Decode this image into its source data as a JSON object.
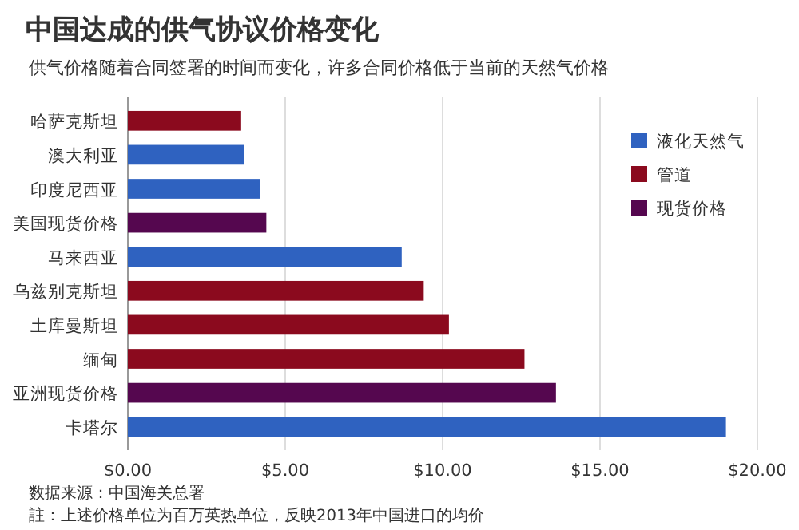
{
  "chart_data": {
    "type": "bar",
    "orientation": "horizontal",
    "stacked": true,
    "title": "中国达成的供气协议价格变化",
    "subtitle": "供气价格随着合同签署的时间而变化，许多合同价格低于当前的天然气价格",
    "categories": [
      "哈萨克斯坦",
      "澳大利亚",
      "印度尼西亚",
      "美国现货价格",
      "马来西亚",
      "乌兹别克斯坦",
      "土库曼斯坦",
      "缅甸",
      "亚洲现货价格",
      "卡塔尔"
    ],
    "series": [
      {
        "name": "液化天然气",
        "color": "#2f62c0",
        "values": [
          null,
          3.7,
          4.2,
          null,
          8.7,
          null,
          null,
          null,
          null,
          19.0
        ]
      },
      {
        "name": "管道",
        "color": "#8b0a1e",
        "values": [
          3.6,
          null,
          null,
          null,
          null,
          9.4,
          10.2,
          12.6,
          null,
          null
        ]
      },
      {
        "name": "现货价格",
        "color": "#55074f",
        "values": [
          null,
          null,
          null,
          4.4,
          null,
          null,
          null,
          null,
          13.6,
          null
        ]
      }
    ],
    "xlim": [
      0,
      20
    ],
    "xticks": [
      {
        "value": 0,
        "label": "$0.00"
      },
      {
        "value": 5,
        "label": "$5.00"
      },
      {
        "value": 10,
        "label": "$10.00"
      },
      {
        "value": 15,
        "label": "$15.00"
      },
      {
        "value": 20,
        "label": "$20.00"
      }
    ],
    "grid": "x",
    "legend": "top right",
    "annotations": [
      "数据来源：中国海关总署",
      "註：上述价格单位为百万英热单位，反映2013年中国进口的均价"
    ]
  }
}
